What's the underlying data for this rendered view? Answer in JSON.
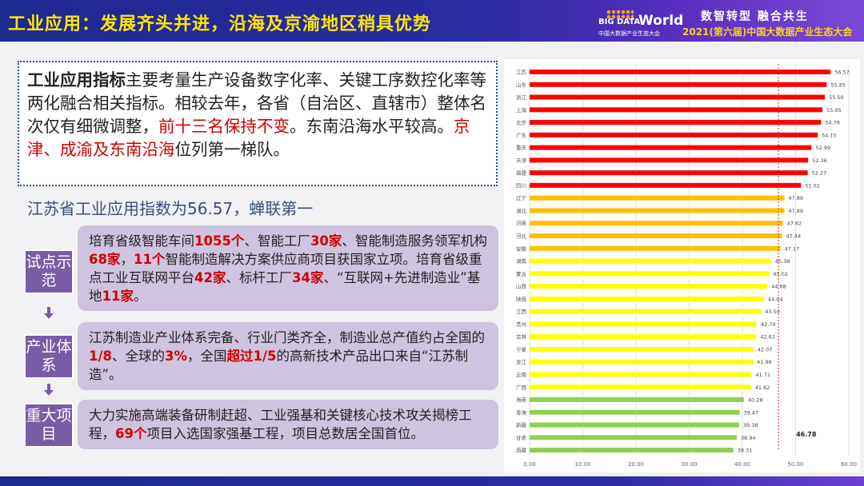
{
  "header": {
    "title": "工业应用：发展齐头并进，沿海及京渝地区稍具优势",
    "logo": {
      "big": "BIG DATA",
      "world": "World",
      "sub": "中国大数据产业生态大会"
    },
    "slogan": "数智转型 融合共生",
    "conference": "2021(第六届)中国大数据产业生态大会"
  },
  "intro": [
    {
      "t": "工业应用指标",
      "s": "b"
    },
    {
      "t": "主要考量生产设备数字化率、关键工序数控化率等两化融合相关指标。相较去年，各省（自治区、直辖市）整体名次仅有细微调整，",
      "s": ""
    },
    {
      "t": "前十三名保持不变",
      "s": "r"
    },
    {
      "t": "。东南沿海水平较高。",
      "s": ""
    },
    {
      "t": "京津、成渝及东南沿海",
      "s": "r"
    },
    {
      "t": "位列第一梯队。",
      "s": ""
    }
  ],
  "subtitle": "江苏省工业应用指数为56.57，蝉联第一",
  "sections": [
    {
      "tag": "试点示范",
      "text": [
        {
          "t": "培育省级智能车间"
        },
        {
          "t": "1055个",
          "h": 1
        },
        {
          "t": "、智能工厂"
        },
        {
          "t": "30家",
          "h": 1
        },
        {
          "t": "、智能制造服务领军机构"
        },
        {
          "t": "68家",
          "h": 1
        },
        {
          "t": "，"
        },
        {
          "t": "11个",
          "h": 1
        },
        {
          "t": "智能制造解决方案供应商项目获国家立项。培育省级重点工业互联网平台"
        },
        {
          "t": "42家",
          "h": 1
        },
        {
          "t": "、标杆工厂"
        },
        {
          "t": "34家",
          "h": 1
        },
        {
          "t": "、“互联网+先进制造业”基地"
        },
        {
          "t": "11家",
          "h": 1
        },
        {
          "t": "。"
        }
      ]
    },
    {
      "tag": "产业体系",
      "text": [
        {
          "t": "江苏制造业产业体系完备、行业门类齐全，制造业总产值约占全国的"
        },
        {
          "t": "1/8",
          "h": 1
        },
        {
          "t": "、全球的"
        },
        {
          "t": "3%",
          "h": 1
        },
        {
          "t": "，全国"
        },
        {
          "t": "超过1/5",
          "h": 1
        },
        {
          "t": "的高新技术产品出口来自“江苏制造”。"
        }
      ]
    },
    {
      "tag": "重大项目",
      "text": [
        {
          "t": "大力实施高端装备研制赶超、工业强基和关键核心技术攻关揭榜工程，"
        },
        {
          "t": "69个",
          "h": 1
        },
        {
          "t": "项目入选国家强基工程，项目总数居全国首位。"
        }
      ]
    }
  ],
  "colors": {
    "accent_red": "#d10000",
    "tier1": "#ff0000",
    "tier2": "#ffc000",
    "tier3": "#ffff00",
    "tier4": "#92d050",
    "tag": "#7a5ba6"
  },
  "chart_data": {
    "type": "bar",
    "orientation": "horizontal",
    "categories": [
      "江苏",
      "山东",
      "浙江",
      "上海",
      "北京",
      "广东",
      "重庆",
      "天津",
      "福建",
      "四川",
      "辽宁",
      "湖北",
      "河南",
      "河北",
      "安徽",
      "湖南",
      "蒙古",
      "山西",
      "陕西",
      "江西",
      "贵州",
      "吉林",
      "宁夏",
      "龙江",
      "云南",
      "广西",
      "海南",
      "青海",
      "新疆",
      "甘肃",
      "西藏"
    ],
    "values": [
      56.57,
      55.85,
      55.5,
      55.05,
      54.78,
      54.15,
      52.99,
      52.36,
      52.27,
      51.02,
      47.89,
      47.89,
      47.62,
      47.44,
      47.17,
      45.38,
      45.02,
      44.68,
      44.04,
      43.5,
      42.7,
      42.61,
      42.07,
      41.98,
      41.71,
      41.62,
      40.28,
      39.47,
      39.38,
      38.94,
      38.31
    ],
    "tiers": [
      1,
      1,
      1,
      1,
      1,
      1,
      1,
      1,
      1,
      1,
      2,
      2,
      2,
      2,
      2,
      3,
      3,
      3,
      3,
      3,
      3,
      3,
      3,
      3,
      3,
      3,
      4,
      4,
      4,
      4,
      4
    ],
    "xlim": [
      0,
      60
    ],
    "xticks": [
      "0.00",
      "10.00",
      "20.00",
      "30.00",
      "40.00",
      "50.00",
      "60.00"
    ],
    "reference_line": {
      "value": 46.78,
      "label": "46.78",
      "style": "dashed"
    },
    "grid": true
  }
}
